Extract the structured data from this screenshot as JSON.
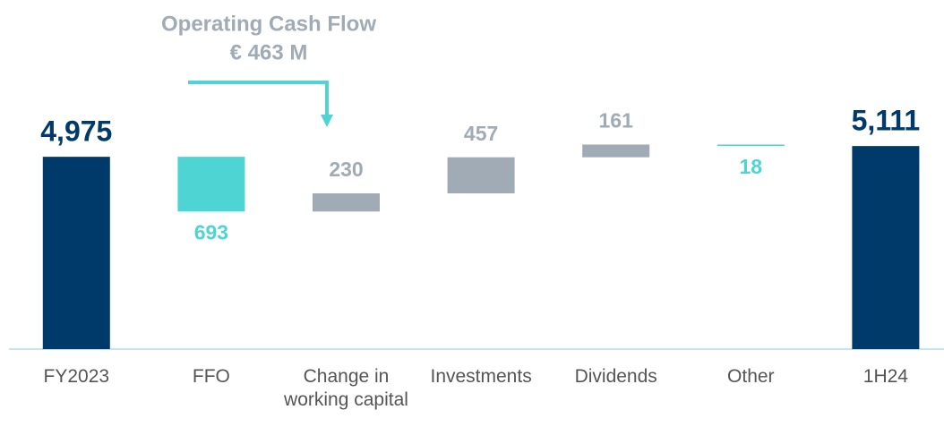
{
  "chart_data": {
    "type": "waterfall",
    "annotations": [
      "Operating Cash Flow",
      "€ 463 M"
    ],
    "categories": [
      "FY2023",
      "FFO",
      "Change in working capital",
      "Investments",
      "Dividends",
      "Other",
      "1H24"
    ],
    "measure": [
      "total",
      "relative",
      "relative",
      "relative",
      "relative",
      "relative",
      "total"
    ],
    "values": [
      4975,
      -693,
      230,
      457,
      161,
      -18,
      5111
    ],
    "value_labels": [
      "4,975",
      "693",
      "230",
      "457",
      "161",
      "18",
      "5,111"
    ],
    "colors": {
      "total": "#003a6b",
      "decrease": "#4fd4d4",
      "increase": "#a0abb5"
    },
    "ylim": [
      2540,
      6960
    ]
  }
}
